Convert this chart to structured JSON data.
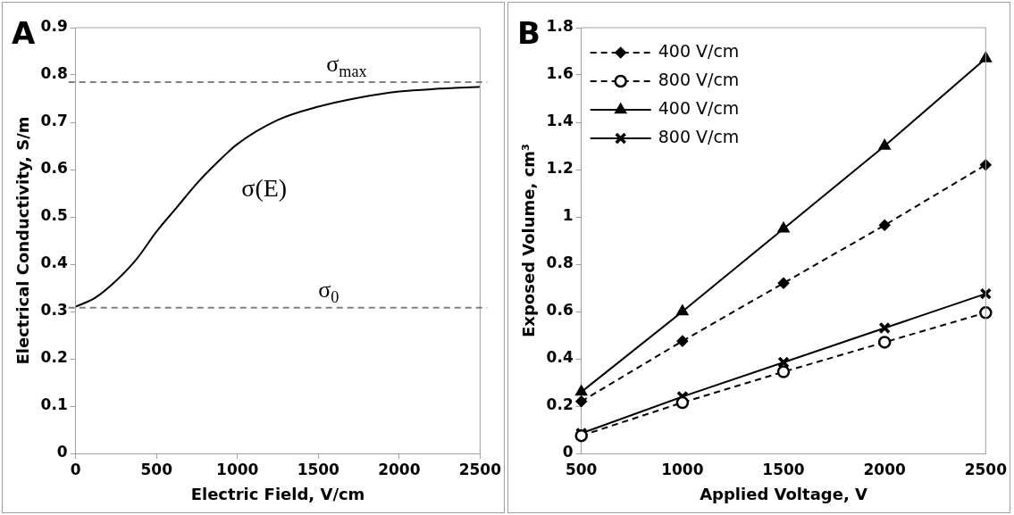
{
  "chart_data": [
    {
      "type": "line",
      "title": "A",
      "xlabel": "Electric Field, V/cm",
      "ylabel": "Electrical Conductivity, S/m",
      "series": [
        {
          "color": "#000000",
          "x": [
            0,
            125,
            250,
            375,
            500,
            625,
            750,
            875,
            1000,
            1250,
            1500,
            1750,
            2000,
            2250,
            2500
          ],
          "values": [
            0.31,
            0.33,
            0.365,
            0.41,
            0.469,
            0.52,
            0.571,
            0.615,
            0.654,
            0.705,
            0.733,
            0.752,
            0.765,
            0.771,
            0.775
          ]
        }
      ],
      "xlim": [
        0,
        2500
      ],
      "xticks": [
        0,
        500,
        1000,
        1500,
        2000,
        2500
      ],
      "ylim": [
        0,
        0.9
      ],
      "yticks": [
        0,
        0.1,
        0.2,
        0.3,
        0.4,
        0.5,
        0.6,
        0.7,
        0.8,
        0.9
      ],
      "ref_lines": [
        {
          "axis": "y",
          "value": 0.785,
          "label": "σ$_{max}$",
          "color": "#808080",
          "line_style": "dashed"
        },
        {
          "axis": "y",
          "value": 0.308,
          "label": "σ$_{0}$",
          "color": "#808080",
          "line_style": "dashed"
        }
      ],
      "annotations": [
        "σ(E)"
      ],
      "grid": false,
      "legend": false,
      "marker": "none",
      "line_style": "solid"
    },
    {
      "type": "line",
      "title": "B",
      "xlabel": "Applied Voltage, V",
      "ylabel": "Exposed Volume, cm³",
      "categories": [
        "500",
        "1000",
        "1500",
        "2000",
        "2500"
      ],
      "series": [
        {
          "name": "400 V/cm",
          "color": "#000000",
          "marker": "diamond",
          "line_style": "dashed",
          "values": [
            0.22,
            0.475,
            0.72,
            0.965,
            1.22
          ]
        },
        {
          "name": "800 V/cm",
          "color": "#000000",
          "marker": "circle",
          "line_style": "dashed",
          "values": [
            0.075,
            0.215,
            0.345,
            0.47,
            0.595
          ]
        },
        {
          "name": "400 V/cm",
          "color": "#000000",
          "marker": "triangle",
          "line_style": "solid",
          "values": [
            0.26,
            0.6,
            0.95,
            1.3,
            1.67
          ]
        },
        {
          "name": "800 V/cm",
          "color": "#000000",
          "marker": "cross",
          "line_style": "solid",
          "values": [
            0.085,
            0.24,
            0.385,
            0.53,
            0.675
          ]
        }
      ],
      "ylim": [
        0,
        1.8
      ],
      "yticks": [
        0,
        0.2,
        0.4,
        0.6,
        0.8,
        1,
        1.2,
        1.4,
        1.6,
        1.8
      ],
      "grid": false,
      "legend": "top left"
    }
  ]
}
